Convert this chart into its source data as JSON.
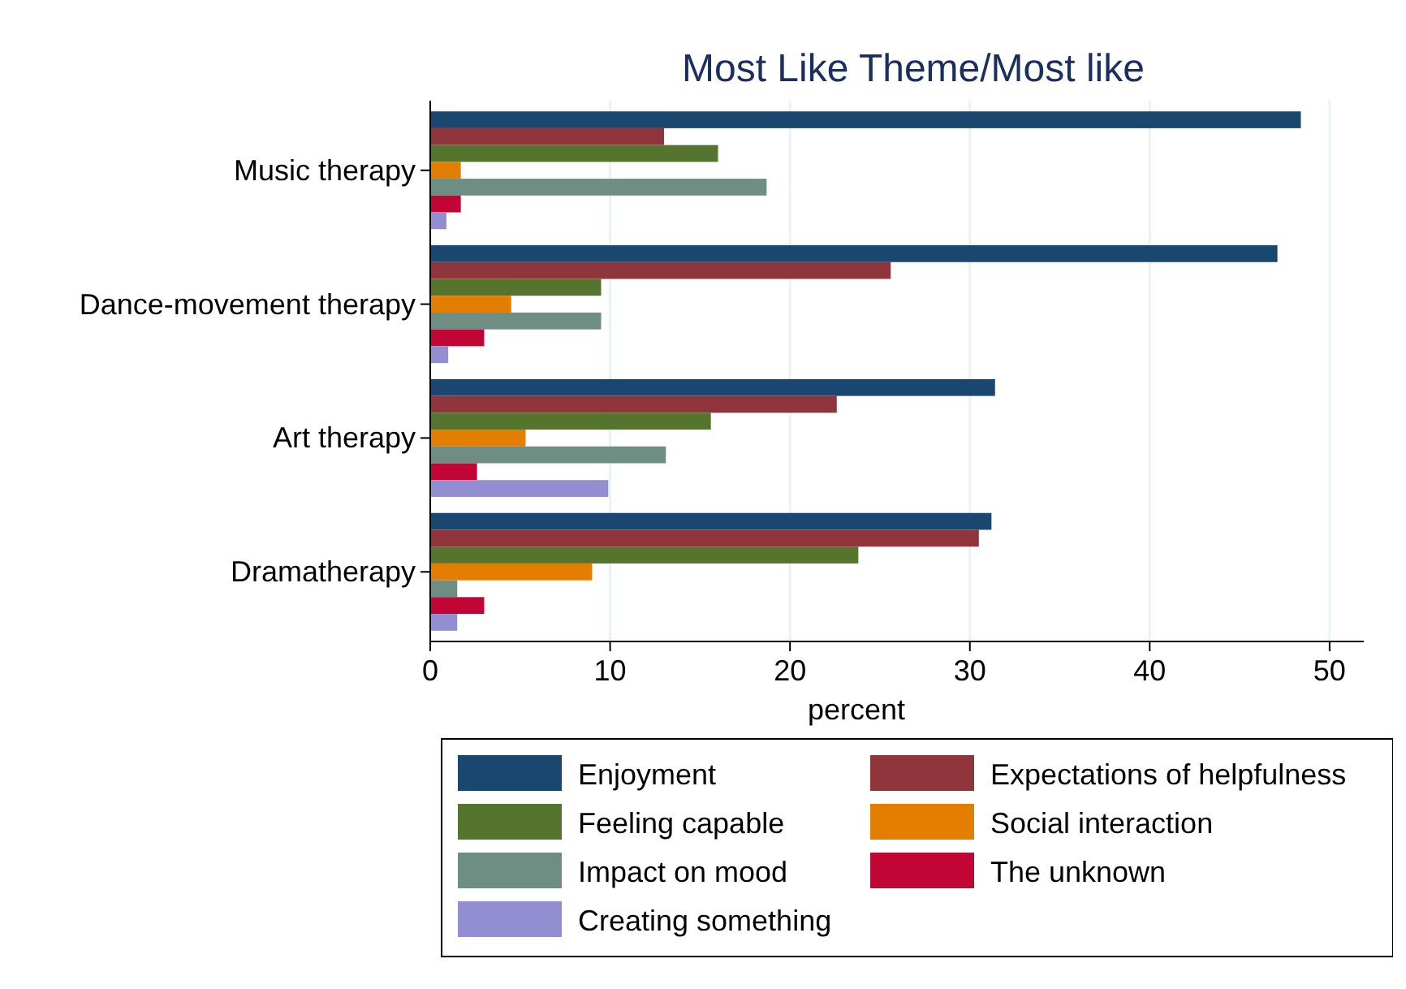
{
  "chart_data": {
    "type": "bar",
    "orientation": "horizontal",
    "title": "Most Like Theme/Most like",
    "xlabel": "percent",
    "categories": [
      "Music therapy",
      "Dance-movement therapy",
      "Art therapy",
      "Dramatherapy"
    ],
    "series": [
      {
        "name": "Enjoyment",
        "color": "#1a476f",
        "values": [
          48.4,
          47.1,
          31.4,
          31.2
        ]
      },
      {
        "name": "Expectations of helpfulness",
        "color": "#90353b",
        "values": [
          13.0,
          25.6,
          22.6,
          30.5
        ]
      },
      {
        "name": "Feeling capable",
        "color": "#55752f",
        "values": [
          16.0,
          9.5,
          15.6,
          23.8
        ]
      },
      {
        "name": "Social interaction",
        "color": "#e37e00",
        "values": [
          1.7,
          4.5,
          5.3,
          9.0
        ]
      },
      {
        "name": "Impact on mood",
        "color": "#6e8e84",
        "values": [
          18.7,
          9.5,
          13.1,
          1.5
        ]
      },
      {
        "name": "The unknown",
        "color": "#c10534",
        "values": [
          1.7,
          3.0,
          2.6,
          3.0
        ]
      },
      {
        "name": "Creating something",
        "color": "#938dd2",
        "values": [
          0.9,
          1.0,
          9.9,
          1.5
        ]
      }
    ],
    "xlim": [
      0,
      51.9
    ],
    "xticks": [
      0,
      10,
      20,
      30,
      40,
      50
    ],
    "grid": "x",
    "legend": "bottom"
  }
}
